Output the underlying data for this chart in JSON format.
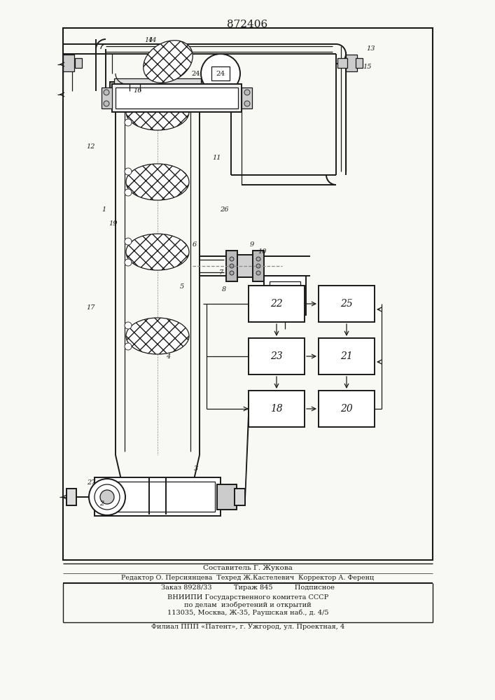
{
  "patent_number": "872406",
  "bg_color": "#f8f8f4",
  "line_color": "#1a1a1a",
  "footer_line1": "Составитель Г. Жукова",
  "footer_line2": "Редактор О. Персиянцева  Техред Ж.Кастелевич  Корректор А. Ференц",
  "footer_line3": "Заказ 8928/33          Тираж 845          Подписное",
  "footer_line4": "ВНИИПИ Государственного комитета СССР",
  "footer_line5": "по делам  изобретений и открытий",
  "footer_line6": "113035, Москва, Ж-35, Раушская наб., д. 4/5",
  "footer_line7": "Филиал ППП «Патент», г. Ужгород, ул. Проектная, 4"
}
